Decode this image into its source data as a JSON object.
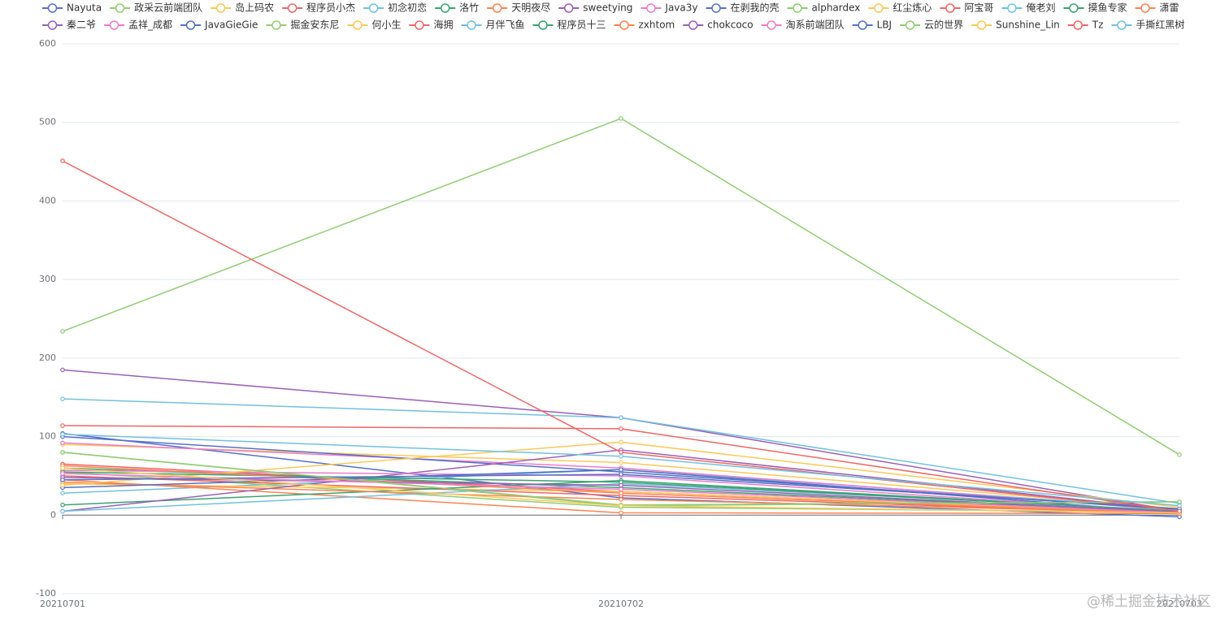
{
  "chart_data": {
    "type": "line",
    "x": [
      "20210701",
      "20210702",
      "20210703"
    ],
    "ylim": [
      -100,
      600
    ],
    "yticks": [
      -100,
      0,
      100,
      200,
      300,
      400,
      500,
      600
    ],
    "grid": true,
    "watermark": "@稀土掘金技术社区",
    "series": [
      {
        "name": "Nayuta",
        "color": "#5470c6",
        "values": [
          104,
          22,
          -2
        ]
      },
      {
        "name": "政采云前端团队",
        "color": "#91cc75",
        "values": [
          80,
          12,
          17
        ]
      },
      {
        "name": "岛上码农",
        "color": "#fac858",
        "values": [
          90,
          67,
          8
        ]
      },
      {
        "name": "程序员小杰",
        "color": "#ee6666",
        "values": [
          65,
          30,
          3
        ]
      },
      {
        "name": "初念初恋",
        "color": "#73c0de",
        "values": [
          28,
          58,
          8
        ]
      },
      {
        "name": "洛竹",
        "color": "#3ba272",
        "values": [
          60,
          35,
          4
        ]
      },
      {
        "name": "天明夜尽",
        "color": "#fc8452",
        "values": [
          45,
          3,
          2
        ]
      },
      {
        "name": "sweetying",
        "color": "#9a60b4",
        "values": [
          185,
          124,
          5
        ]
      },
      {
        "name": "Java3y",
        "color": "#ea7ccc",
        "values": [
          92,
          60,
          6
        ]
      },
      {
        "name": "在剥我的壳",
        "color": "#5470c6",
        "values": [
          100,
          55,
          7
        ]
      },
      {
        "name": "alphardex",
        "color": "#91cc75",
        "values": [
          55,
          10,
          4
        ]
      },
      {
        "name": "红尘炼心",
        "color": "#fac858",
        "values": [
          40,
          30,
          3
        ]
      },
      {
        "name": "阿宝哥",
        "color": "#ee6666",
        "values": [
          50,
          25,
          2
        ]
      },
      {
        "name": "俺老刘",
        "color": "#73c0de",
        "values": [
          148,
          124,
          15
        ]
      },
      {
        "name": "摸鱼专家",
        "color": "#3ba272",
        "values": [
          13,
          44,
          5
        ]
      },
      {
        "name": "潇雷",
        "color": "#fc8452",
        "values": [
          42,
          20,
          3
        ]
      },
      {
        "name": "秦二爷",
        "color": "#9a60b4",
        "values": [
          5,
          83,
          6
        ]
      },
      {
        "name": "孟祥_成都",
        "color": "#ea7ccc",
        "values": [
          57,
          50,
          4
        ]
      },
      {
        "name": "JavaGieGie",
        "color": "#5470c6",
        "values": [
          35,
          58,
          3
        ]
      },
      {
        "name": "掘金安东尼",
        "color": "#91cc75",
        "values": [
          234,
          505,
          77
        ]
      },
      {
        "name": "何小生",
        "color": "#fac858",
        "values": [
          38,
          93,
          10
        ]
      },
      {
        "name": "海拥",
        "color": "#ee6666",
        "values": [
          451,
          80,
          5
        ]
      },
      {
        "name": "月伴飞鱼",
        "color": "#73c0de",
        "values": [
          5,
          40,
          6
        ]
      },
      {
        "name": "程序员十三",
        "color": "#3ba272",
        "values": [
          55,
          42,
          5
        ]
      },
      {
        "name": "zxhtom",
        "color": "#fc8452",
        "values": [
          63,
          28,
          2
        ]
      },
      {
        "name": "chokcoco",
        "color": "#9a60b4",
        "values": [
          48,
          38,
          4
        ]
      },
      {
        "name": "淘系前端团队",
        "color": "#ea7ccc",
        "values": [
          53,
          33,
          3
        ]
      },
      {
        "name": "LBJ",
        "color": "#5470c6",
        "values": [
          45,
          52,
          8
        ]
      },
      {
        "name": "云的世界",
        "color": "#91cc75",
        "values": [
          80,
          13,
          17
        ]
      },
      {
        "name": "Sunshine_Lin",
        "color": "#fac858",
        "values": [
          60,
          12,
          3
        ]
      },
      {
        "name": "Tz",
        "color": "#ee6666",
        "values": [
          114,
          110,
          5
        ]
      },
      {
        "name": "手撕红黑树",
        "color": "#73c0de",
        "values": [
          103,
          75,
          12
        ]
      }
    ]
  }
}
